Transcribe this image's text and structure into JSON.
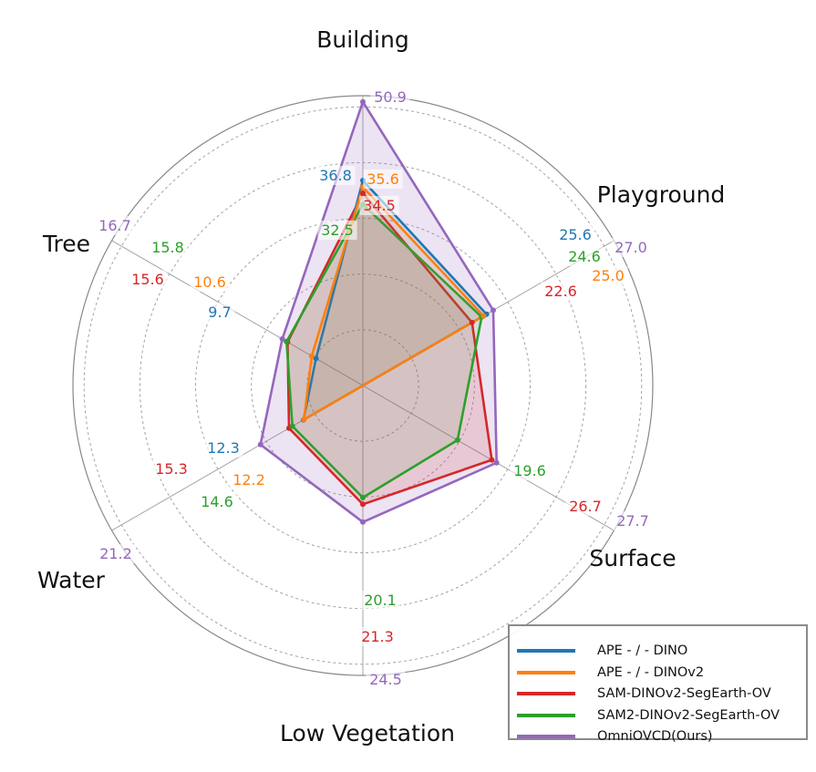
{
  "chart_data": {
    "type": "radar",
    "axes": [
      "Building",
      "Playground",
      "Surface",
      "Low Vegetation",
      "Water",
      "Tree"
    ],
    "rmax": 52,
    "rings": [
      10,
      20,
      30,
      40,
      50
    ],
    "series": [
      {
        "name": "APE - / - DINO",
        "color": "#1f77b4",
        "values": [
          36.8,
          25.6,
          0,
          0,
          12.3,
          9.7
        ]
      },
      {
        "name": "APE - / - DINOv2",
        "color": "#ff7f0e",
        "values": [
          35.6,
          25.0,
          0,
          0,
          12.2,
          10.6
        ]
      },
      {
        "name": "SAM-DINOv2-SegEarth-OV",
        "color": "#d62728",
        "values": [
          34.5,
          22.6,
          26.7,
          21.3,
          15.3,
          15.6
        ]
      },
      {
        "name": "SAM2-DINOv2-SegEarth-OV",
        "color": "#2ca02c",
        "values": [
          32.5,
          24.6,
          19.6,
          20.1,
          14.6,
          15.8
        ]
      },
      {
        "name": "OmniOVCD(Ours)",
        "color": "#9467bd",
        "values": [
          50.9,
          27.0,
          27.7,
          24.5,
          21.2,
          16.7
        ]
      }
    ],
    "data_labels": [
      {
        "text": "50.9",
        "color": "#9467bd"
      },
      {
        "text": "36.8",
        "color": "#1f77b4"
      },
      {
        "text": "35.6",
        "color": "#ff7f0e"
      },
      {
        "text": "34.5",
        "color": "#d62728"
      },
      {
        "text": "32.5",
        "color": "#2ca02c"
      },
      {
        "text": "25.6",
        "color": "#1f77b4"
      },
      {
        "text": "27.0",
        "color": "#9467bd"
      },
      {
        "text": "24.6",
        "color": "#2ca02c"
      },
      {
        "text": "25.0",
        "color": "#ff7f0e"
      },
      {
        "text": "22.6",
        "color": "#d62728"
      },
      {
        "text": "19.6",
        "color": "#2ca02c"
      },
      {
        "text": "26.7",
        "color": "#d62728"
      },
      {
        "text": "27.7",
        "color": "#9467bd"
      },
      {
        "text": "20.1",
        "color": "#2ca02c"
      },
      {
        "text": "21.3",
        "color": "#d62728"
      },
      {
        "text": "24.5",
        "color": "#9467bd"
      },
      {
        "text": "15.3",
        "color": "#d62728"
      },
      {
        "text": "12.3",
        "color": "#1f77b4"
      },
      {
        "text": "12.2",
        "color": "#ff7f0e"
      },
      {
        "text": "14.6",
        "color": "#2ca02c"
      },
      {
        "text": "21.2",
        "color": "#9467bd"
      },
      {
        "text": "16.7",
        "color": "#9467bd"
      },
      {
        "text": "15.8",
        "color": "#2ca02c"
      },
      {
        "text": "15.6",
        "color": "#d62728"
      },
      {
        "text": "10.6",
        "color": "#ff7f0e"
      },
      {
        "text": "9.7",
        "color": "#1f77b4"
      }
    ],
    "legend_position": "bottom-right",
    "grid": true
  }
}
